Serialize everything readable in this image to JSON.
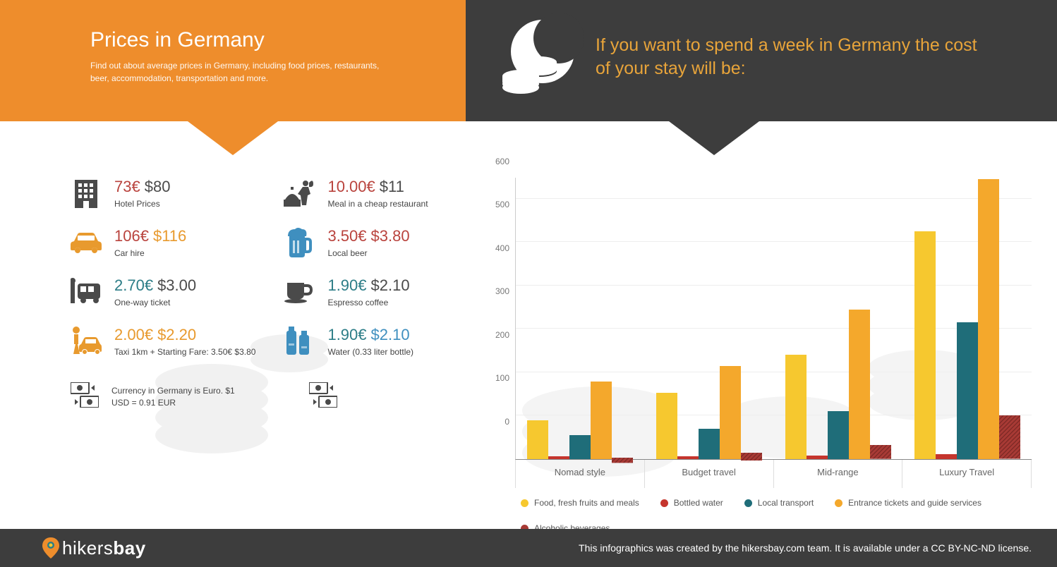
{
  "header": {
    "title": "Prices in Germany",
    "subtitle": "Find out about average prices in Germany, including food prices, restaurants, beer, accommodation, transportation and more.",
    "cost_intro": "If you want to spend a week in Germany the cost of your stay will be:"
  },
  "colors": {
    "orange": "#ee8d2c",
    "dark": "#3d3d3d",
    "price_dark": "#4a4a4a",
    "price_red": "#b9433d",
    "price_teal": "#2c7d87",
    "price_orange": "#e89a2e",
    "price_blue": "#3f8fbf"
  },
  "prices_left": [
    {
      "eur": "73€",
      "usd": "$80",
      "label": "Hotel Prices",
      "icon": "building",
      "eur_color": "#b9433d",
      "usd_color": "#4a4a4a",
      "icon_color": "#4a4a4a"
    },
    {
      "eur": "106€",
      "usd": "$116",
      "label": "Car hire",
      "icon": "car",
      "eur_color": "#b9433d",
      "usd_color": "#e89a2e",
      "icon_color": "#e89a2e"
    },
    {
      "eur": "2.70€",
      "usd": "$3.00",
      "label": "One-way ticket",
      "icon": "bus",
      "eur_color": "#2c7d87",
      "usd_color": "#4a4a4a",
      "icon_color": "#4a4a4a"
    },
    {
      "eur": "2.00€",
      "usd": "$2.20",
      "label": "Taxi 1km + Starting Fare: 3.50€ $3.80",
      "icon": "taxi",
      "eur_color": "#e89a2e",
      "usd_color": "#e89a2e",
      "icon_color": "#e89a2e"
    }
  ],
  "prices_right": [
    {
      "eur": "10.00€",
      "usd": "$11",
      "label": "Meal in a cheap restaurant",
      "icon": "waiter",
      "eur_color": "#b9433d",
      "usd_color": "#4a4a4a",
      "icon_color": "#4a4a4a"
    },
    {
      "eur": "3.50€",
      "usd": "$3.80",
      "label": "Local beer",
      "icon": "beer",
      "eur_color": "#b9433d",
      "usd_color": "#b9433d",
      "icon_color": "#3f8fbf"
    },
    {
      "eur": "1.90€",
      "usd": "$2.10",
      "label": "Espresso coffee",
      "icon": "coffee",
      "eur_color": "#2c7d87",
      "usd_color": "#4a4a4a",
      "icon_color": "#4a4a4a"
    },
    {
      "eur": "1.90€",
      "usd": "$2.10",
      "label": "Water (0.33 liter bottle)",
      "icon": "water",
      "eur_color": "#2c7d87",
      "usd_color": "#3f8fbf",
      "icon_color": "#3f8fbf"
    }
  ],
  "currency_note_left": "Currency in Germany is Euro. $1 USD = 0.91 EUR",
  "chart": {
    "ylim": [
      0,
      650
    ],
    "yticks": [
      0,
      100,
      200,
      300,
      400,
      500,
      600
    ],
    "categories": [
      "Nomad style",
      "Budget travel",
      "Mid-range",
      "Luxury Travel"
    ],
    "series": [
      {
        "name": "Food, fresh fruits and meals",
        "color": "#f6c82f",
        "values": [
          90,
          153,
          240,
          525
        ]
      },
      {
        "name": "Bottled water",
        "color": "#c5352d",
        "values": [
          6,
          7,
          8,
          12
        ]
      },
      {
        "name": "Local transport",
        "color": "#1f6d79",
        "values": [
          55,
          70,
          110,
          315
        ]
      },
      {
        "name": "Entrance tickets and guide services",
        "color": "#f4a82c",
        "values": [
          178,
          215,
          345,
          645
        ]
      },
      {
        "name": "Alcoholic beverages",
        "color": "#a83a35",
        "values": [
          12,
          18,
          32,
          100
        ],
        "hatched": true
      }
    ]
  },
  "footer": {
    "brand_prefix": "hikers",
    "brand_suffix": "bay",
    "credit": "This infographics was created by the hikersbay.com team. It is available under a CC BY-NC-ND license."
  }
}
